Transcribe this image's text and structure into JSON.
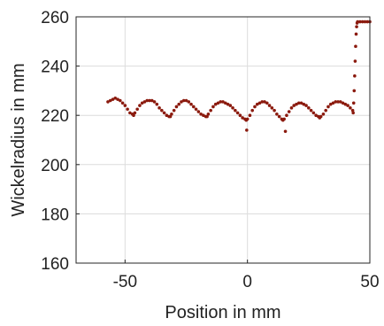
{
  "chart_data": {
    "type": "scatter",
    "xlabel": "Position in mm",
    "ylabel": "Wickelradius in mm",
    "xlim": [
      -70,
      50
    ],
    "ylim": [
      160,
      260
    ],
    "xticks": [
      -50,
      0,
      50
    ],
    "yticks": [
      160,
      180,
      200,
      220,
      240,
      260
    ],
    "xtick_labels": [
      "-50",
      "0",
      "50"
    ],
    "ytick_labels": [
      "160",
      "180",
      "200",
      "220",
      "240",
      "260"
    ],
    "grid": true,
    "marker_color": "#8b1a0e",
    "series": [
      {
        "x": [
          -57,
          -56,
          -55,
          -54,
          -53,
          -52,
          -51,
          -50,
          -49,
          -48,
          -47,
          -46.5,
          -46,
          -45,
          -44,
          -43,
          -42,
          -41,
          -40,
          -39,
          -38,
          -37,
          -36,
          -35,
          -34,
          -33,
          -32,
          -31.5,
          -31,
          -30,
          -29,
          -28,
          -27,
          -26,
          -25,
          -24,
          -23,
          -22,
          -21,
          -20,
          -19,
          -18,
          -17,
          -16.5,
          -16,
          -15,
          -14,
          -13,
          -12,
          -11,
          -10,
          -9,
          -8,
          -7,
          -6,
          -5,
          -4,
          -3,
          -2,
          -1,
          -0.5,
          0,
          1,
          2,
          3,
          4,
          5,
          6,
          7,
          8,
          9,
          10,
          11,
          12,
          13,
          14,
          14.5,
          15,
          16,
          17,
          18,
          19,
          20,
          21,
          22,
          23,
          24,
          25,
          26,
          27,
          28,
          29,
          29.5,
          30,
          31,
          32,
          33,
          34,
          35,
          36,
          37,
          38,
          39,
          40,
          41,
          42,
          43,
          43.2,
          43.4,
          43.6,
          43.8,
          44,
          44.2,
          44.4,
          44.6,
          44.8,
          45,
          46,
          47,
          48,
          49,
          50,
          -0.3,
          15.5
        ],
        "y": [
          225.5,
          226,
          226.5,
          227,
          226.5,
          226,
          225,
          224,
          222.5,
          221,
          220.5,
          220,
          221,
          222.5,
          224,
          225,
          225.5,
          226,
          226,
          226,
          225.5,
          224.5,
          223,
          222,
          221,
          220,
          219.5,
          219.5,
          220.5,
          222,
          223.5,
          224.5,
          225.5,
          226,
          226,
          225.5,
          224.5,
          223.5,
          222.5,
          221.5,
          220.5,
          220,
          219.5,
          219.5,
          220.5,
          222,
          223.5,
          224.5,
          225,
          225.5,
          225.5,
          225,
          224.5,
          224,
          223,
          222,
          221,
          220,
          219,
          218.5,
          218,
          218.5,
          220,
          222,
          223.5,
          224.5,
          225,
          225.5,
          225.5,
          225,
          224,
          223,
          222,
          220.5,
          219.5,
          218.5,
          218,
          218.5,
          220,
          221.5,
          223,
          224,
          224.5,
          225,
          225,
          224.5,
          224,
          223,
          222,
          221,
          220,
          219.5,
          219,
          219.5,
          220.5,
          222,
          223.5,
          224.5,
          225,
          225.5,
          225.5,
          225.5,
          225,
          224.5,
          224,
          223,
          222,
          221,
          225,
          230,
          236,
          242,
          248,
          253,
          256,
          257.5,
          258,
          258,
          258,
          258,
          258,
          258,
          214,
          213.5
        ]
      }
    ]
  }
}
